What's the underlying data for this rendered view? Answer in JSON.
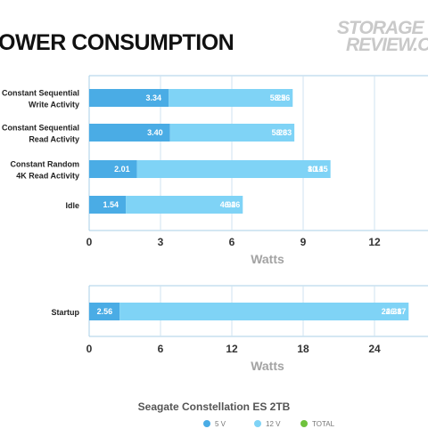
{
  "title": "OWER CONSUMPTION",
  "logo": {
    "line1": "STORAGE",
    "line2": "REVIEW.CO"
  },
  "legend_title": "Seagate Constellation ES 2TB",
  "colors": {
    "v5": "#4aace5",
    "v12": "#7fd3f6",
    "total": "#6fc23d",
    "axis": "#a9cfe7",
    "grid": "#cfe3f1"
  },
  "chart_data": [
    {
      "type": "bar",
      "xlabel": "Watts",
      "xlim": [
        0,
        15
      ],
      "xticks": [
        0,
        3,
        6,
        9,
        12
      ],
      "categories": [
        [
          "Constant Sequential",
          "Write Activity"
        ],
        [
          "Constant Sequential",
          "Read Activity"
        ],
        [
          "Constant Random",
          "4K Read Activity"
        ],
        [
          "Idle"
        ]
      ],
      "series": [
        {
          "name": "5 V",
          "values": [
            3.34,
            3.4,
            2.01,
            1.54
          ]
        },
        {
          "name": "12 V",
          "values": [
            5.22,
            5.23,
            8.14,
            4.92
          ]
        },
        {
          "name": "TOTAL",
          "values": [
            8.56,
            8.63,
            10.15,
            6.46
          ]
        }
      ]
    },
    {
      "type": "bar",
      "xlabel": "Watts",
      "xlim": [
        0,
        30
      ],
      "xticks": [
        0,
        6,
        12,
        18,
        24
      ],
      "categories": [
        [
          "Startup"
        ]
      ],
      "series": [
        {
          "name": "5 V",
          "values": [
            2.56
          ]
        },
        {
          "name": "12 V",
          "values": [
            24.31
          ]
        },
        {
          "name": "TOTAL",
          "values": [
            26.87
          ]
        }
      ]
    }
  ],
  "legend": [
    {
      "label": "5 V",
      "color": "#4aace5"
    },
    {
      "label": "12 V",
      "color": "#7fd3f6"
    },
    {
      "label": "TOTAL",
      "color": "#6fc23d"
    }
  ]
}
